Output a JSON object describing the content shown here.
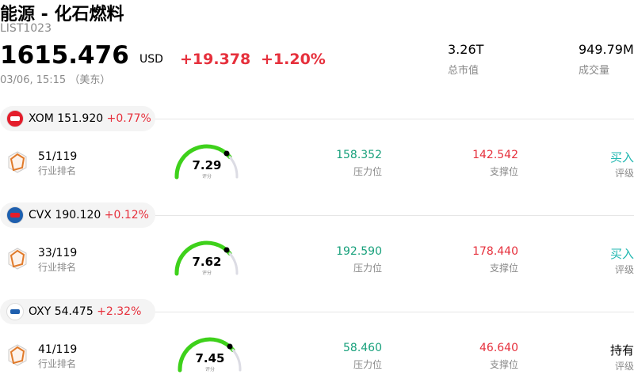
{
  "header": {
    "title": "能源 - 化石燃料",
    "code": "LIST1023",
    "price": "1615.476",
    "currency": "USD",
    "change": "+19.378",
    "change_pct": "+1.20%",
    "time": "03/06, 15:15 （美东）"
  },
  "stats": [
    {
      "value": "3.26T",
      "label": "总市值"
    },
    {
      "value": "949.79M",
      "label": "成交量"
    }
  ],
  "stocks": [
    {
      "ticker": "XOM",
      "price": "151.920",
      "change": "+0.77%",
      "rank": "51/119",
      "rank_label": "行业排名",
      "score": "7.29",
      "score_label": "评分",
      "resistance": "158.352",
      "resistance_label": "压力位",
      "support": "142.542",
      "support_label": "支撑位",
      "rating": "买入",
      "rating_label": "评级"
    },
    {
      "ticker": "CVX",
      "price": "190.120",
      "change": "+0.12%",
      "rank": "33/119",
      "rank_label": "行业排名",
      "score": "7.62",
      "score_label": "评分",
      "resistance": "192.590",
      "resistance_label": "压力位",
      "support": "178.440",
      "support_label": "支撑位",
      "rating": "买入",
      "rating_label": "评级"
    },
    {
      "ticker": "OXY",
      "price": "54.475",
      "change": "+2.32%",
      "rank": "41/119",
      "rank_label": "行业排名",
      "score": "7.45",
      "score_label": "评分",
      "resistance": "58.460",
      "resistance_label": "压力位",
      "support": "46.640",
      "support_label": "支撑位",
      "rating": "持有",
      "rating_label": "评级"
    }
  ]
}
